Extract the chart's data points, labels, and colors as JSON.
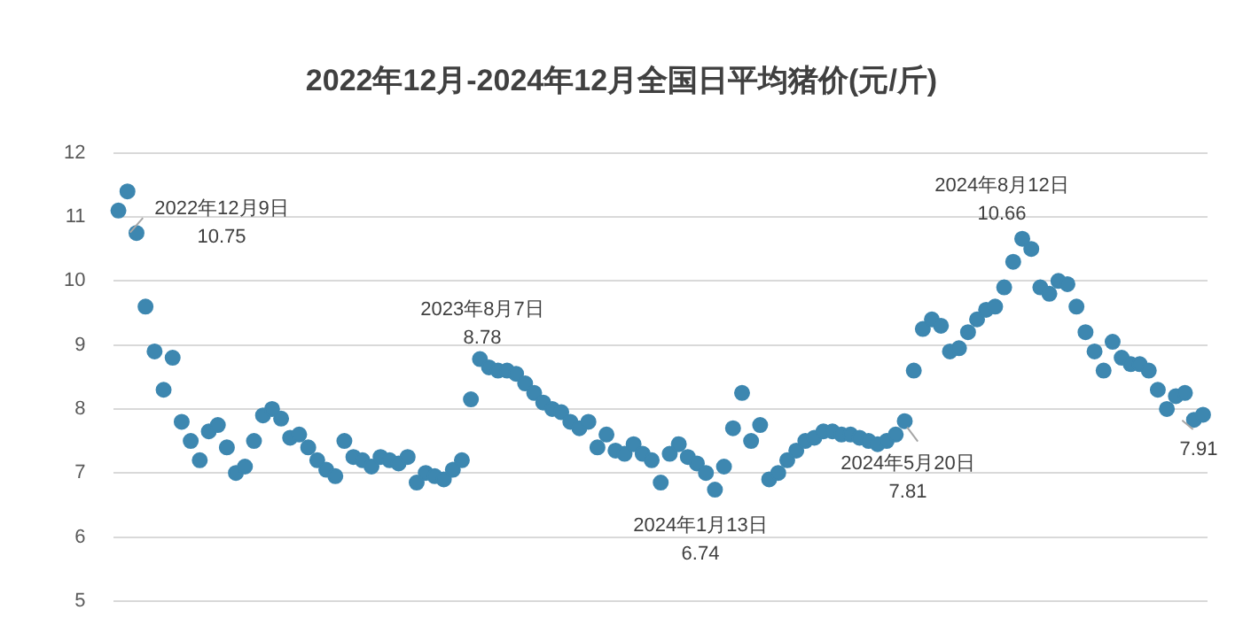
{
  "chart_data": {
    "type": "scatter",
    "title": "2022年12月-2024年12月全国日平均猪价(元/斤)",
    "categories": [
      null,
      null,
      null,
      null,
      null,
      null,
      null,
      null,
      null,
      null,
      null,
      null,
      null,
      null,
      null,
      null,
      null,
      null,
      null,
      null,
      null,
      null,
      null,
      null,
      null,
      null,
      null,
      null,
      null,
      null,
      null,
      null,
      null,
      null,
      null,
      null,
      null,
      null,
      null,
      null,
      null,
      null,
      null,
      null,
      null,
      null,
      null,
      null,
      null,
      null,
      null,
      null,
      null,
      null,
      null,
      null,
      null,
      null,
      null,
      null,
      null,
      null,
      null,
      null,
      null,
      null,
      null,
      null,
      null,
      null,
      null,
      null,
      null,
      null,
      null,
      null,
      null,
      null,
      null,
      null,
      null,
      null,
      null,
      null,
      null,
      null,
      null,
      null,
      null,
      null,
      null,
      null,
      null,
      null,
      null,
      null,
      null,
      null,
      null,
      null,
      null,
      null,
      null,
      null,
      null,
      null,
      null,
      null,
      null,
      null,
      null,
      null,
      null,
      null,
      null,
      null,
      null,
      null,
      null,
      null,
      null
    ],
    "series": [
      {
        "color": "#3d87b0",
        "values": [
          11.1,
          11.4,
          10.75,
          9.6,
          8.9,
          8.3,
          8.8,
          7.8,
          7.5,
          7.2,
          7.65,
          7.75,
          7.4,
          7.0,
          7.1,
          7.5,
          7.9,
          8.0,
          7.85,
          7.55,
          7.6,
          7.4,
          7.2,
          7.05,
          6.95,
          7.5,
          7.25,
          7.2,
          7.1,
          7.25,
          7.2,
          7.15,
          7.25,
          6.85,
          7.0,
          6.95,
          6.9,
          7.05,
          7.2,
          8.15,
          8.78,
          8.65,
          8.6,
          8.6,
          8.55,
          8.4,
          8.25,
          8.1,
          8.0,
          7.95,
          7.8,
          7.7,
          7.8,
          7.4,
          7.6,
          7.35,
          7.3,
          7.45,
          7.3,
          7.2,
          6.85,
          7.3,
          7.45,
          7.25,
          7.15,
          7.0,
          6.74,
          7.1,
          7.7,
          8.25,
          7.5,
          7.75,
          6.9,
          7.0,
          7.2,
          7.35,
          7.5,
          7.55,
          7.65,
          7.65,
          7.6,
          7.6,
          7.55,
          7.5,
          7.45,
          7.5,
          7.6,
          7.81,
          8.6,
          9.25,
          9.4,
          9.3,
          8.9,
          8.95,
          9.2,
          9.4,
          9.55,
          9.6,
          9.9,
          10.3,
          10.66,
          10.5,
          9.9,
          9.8,
          10.0,
          9.95,
          9.6,
          9.2,
          8.9,
          8.6,
          9.05,
          8.8,
          8.7,
          8.7,
          8.6,
          8.3,
          8.0,
          8.2,
          8.25,
          7.83,
          7.91
        ]
      }
    ],
    "ylim": [
      5,
      12
    ],
    "yticks": [
      5,
      6,
      7,
      8,
      9,
      10,
      11,
      12
    ],
    "grid": "y",
    "tick_labels": "y",
    "marker": "circle",
    "legend": false,
    "annotations": [
      "2022年12月9日\n10.75",
      "2023年8月7日\n8.78",
      "2024年1月13日\n6.74",
      "2024年5月20日\n7.81",
      "2024年8月12日\n10.66",
      "7.91"
    ]
  }
}
